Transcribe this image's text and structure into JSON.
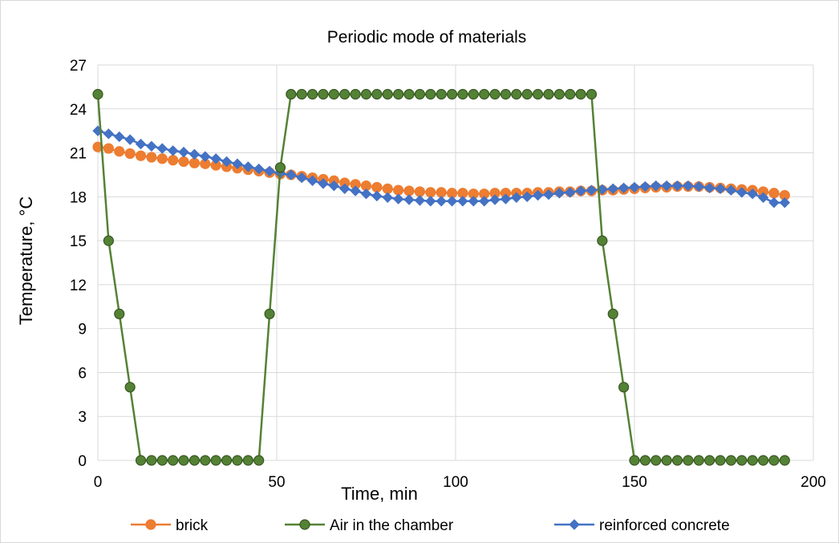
{
  "chart_data": {
    "type": "line",
    "title": "Periodic mode of materials",
    "xlabel": "Time, min",
    "ylabel": "Temperature, °C",
    "xlim": [
      0,
      200
    ],
    "ylim": [
      0,
      27
    ],
    "xticks": [
      "0",
      "50",
      "100",
      "150",
      "200"
    ],
    "yticks": [
      "0",
      "3",
      "6",
      "9",
      "12",
      "15",
      "18",
      "21",
      "24",
      "27"
    ],
    "grid": "horizontal and vertical",
    "legend": "bottom",
    "series": [
      {
        "name": "brick",
        "color": "#ED7D31",
        "marker": "circle",
        "x": [
          0,
          3,
          6,
          9,
          12,
          15,
          18,
          21,
          24,
          27,
          30,
          33,
          36,
          39,
          42,
          45,
          48,
          51,
          54,
          57,
          60,
          63,
          66,
          69,
          72,
          75,
          78,
          81,
          84,
          87,
          90,
          93,
          96,
          99,
          102,
          105,
          108,
          111,
          114,
          117,
          120,
          123,
          126,
          129,
          132,
          135,
          138,
          141,
          144,
          147,
          150,
          153,
          156,
          159,
          162,
          165,
          168,
          171,
          174,
          177,
          180,
          183,
          186,
          189,
          192
        ],
        "y": [
          21.4,
          21.3,
          21.1,
          20.95,
          20.8,
          20.7,
          20.6,
          20.5,
          20.4,
          20.3,
          20.25,
          20.15,
          20.05,
          19.95,
          19.85,
          19.75,
          19.65,
          19.55,
          19.5,
          19.4,
          19.3,
          19.2,
          19.1,
          18.95,
          18.85,
          18.75,
          18.65,
          18.55,
          18.45,
          18.4,
          18.35,
          18.3,
          18.3,
          18.25,
          18.25,
          18.2,
          18.2,
          18.25,
          18.25,
          18.25,
          18.25,
          18.3,
          18.3,
          18.35,
          18.35,
          18.4,
          18.4,
          18.45,
          18.45,
          18.5,
          18.55,
          18.6,
          18.65,
          18.65,
          18.7,
          18.7,
          18.7,
          18.65,
          18.6,
          18.55,
          18.5,
          18.45,
          18.35,
          18.25,
          18.1
        ]
      },
      {
        "name": "Air in the chamber",
        "color": "#548235",
        "marker": "circle",
        "x": [
          0,
          3,
          6,
          9,
          12,
          15,
          18,
          21,
          24,
          27,
          30,
          33,
          36,
          39,
          42,
          45,
          48,
          51,
          54,
          57,
          60,
          63,
          66,
          69,
          72,
          75,
          78,
          81,
          84,
          87,
          90,
          93,
          96,
          99,
          102,
          105,
          108,
          111,
          114,
          117,
          120,
          123,
          126,
          129,
          132,
          135,
          138,
          141,
          144,
          147,
          150,
          153,
          156,
          159,
          162,
          165,
          168,
          171,
          174,
          177,
          180,
          183,
          186,
          189,
          192
        ],
        "y": [
          25,
          15,
          10,
          5,
          0,
          0,
          0,
          0,
          0,
          0,
          0,
          0,
          0,
          0,
          0,
          0,
          10,
          20,
          25,
          25,
          25,
          25,
          25,
          25,
          25,
          25,
          25,
          25,
          25,
          25,
          25,
          25,
          25,
          25,
          25,
          25,
          25,
          25,
          25,
          25,
          25,
          25,
          25,
          25,
          25,
          25,
          25,
          15,
          10,
          5,
          0,
          0,
          0,
          0,
          0,
          0,
          0,
          0,
          0,
          0,
          0,
          0,
          0,
          0,
          0
        ]
      },
      {
        "name": "reinforced concrete",
        "color": "#4472C4",
        "marker": "diamond",
        "x": [
          0,
          3,
          6,
          9,
          12,
          15,
          18,
          21,
          24,
          27,
          30,
          33,
          36,
          39,
          42,
          45,
          48,
          51,
          54,
          57,
          60,
          63,
          66,
          69,
          72,
          75,
          78,
          81,
          84,
          87,
          90,
          93,
          96,
          99,
          102,
          105,
          108,
          111,
          114,
          117,
          120,
          123,
          126,
          129,
          132,
          135,
          138,
          141,
          144,
          147,
          150,
          153,
          156,
          159,
          162,
          165,
          168,
          171,
          174,
          177,
          180,
          183,
          186,
          189,
          192
        ],
        "y": [
          22.5,
          22.3,
          22.1,
          21.9,
          21.6,
          21.45,
          21.3,
          21.15,
          21.05,
          20.9,
          20.75,
          20.6,
          20.4,
          20.25,
          20.05,
          19.9,
          19.75,
          19.6,
          19.5,
          19.3,
          19.1,
          18.9,
          18.75,
          18.55,
          18.4,
          18.2,
          18.05,
          17.95,
          17.85,
          17.8,
          17.75,
          17.7,
          17.7,
          17.7,
          17.7,
          17.7,
          17.7,
          17.8,
          17.85,
          17.95,
          18.0,
          18.1,
          18.15,
          18.25,
          18.3,
          18.4,
          18.45,
          18.5,
          18.55,
          18.6,
          18.65,
          18.7,
          18.75,
          18.75,
          18.75,
          18.75,
          18.7,
          18.6,
          18.55,
          18.45,
          18.3,
          18.2,
          17.95,
          17.6,
          17.6
        ]
      }
    ]
  }
}
